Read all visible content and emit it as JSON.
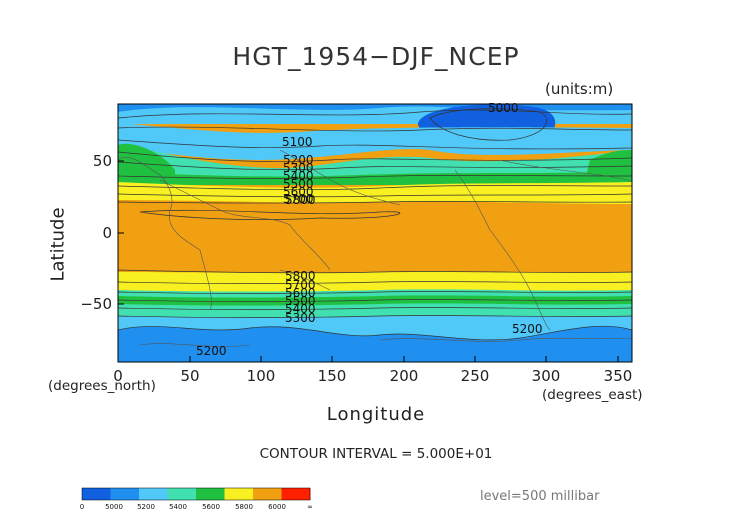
{
  "title": "HGT_1954−DJF_NCEP",
  "units_label": "(units:m)",
  "axes": {
    "xlabel": "Longitude",
    "ylabel": "Latitude",
    "x_unit": "(degrees_east)",
    "y_unit": "(degrees_north)",
    "x_ticks": [
      "0",
      "50",
      "100",
      "150",
      "200",
      "250",
      "300",
      "350"
    ],
    "y_ticks": [
      "50",
      "0",
      "−50"
    ]
  },
  "contour_interval_text": "CONTOUR INTERVAL = 5.000E+01",
  "level_text": "level=500 millibar",
  "contour_labels": [
    "5000",
    "5100",
    "5200",
    "5300",
    "5400",
    "5500",
    "5600",
    "5700",
    "5800",
    "5200",
    "5200",
    "5300",
    "5400",
    "5500",
    "5600",
    "5700",
    "5800"
  ],
  "colorbar": {
    "labels": [
      "0",
      "5000",
      "5200",
      "5400",
      "5600",
      "5800",
      "6000",
      "∞"
    ],
    "colors": [
      "#1060e0",
      "#2090f0",
      "#50c8f8",
      "#40e0b0",
      "#20c040",
      "#f8f020",
      "#f0a010",
      "#ff2000"
    ]
  },
  "chart_data": {
    "type": "heatmap",
    "variable": "HGT",
    "units": "m",
    "x_range": [
      0,
      360
    ],
    "y_range": [
      -90,
      90
    ],
    "contour_interval": 50,
    "bands": [
      {
        "range": [
          0,
          5000
        ],
        "color": "#1060e0"
      },
      {
        "range": [
          5000,
          5200
        ],
        "color": "#2090f0"
      },
      {
        "range": [
          5200,
          5400
        ],
        "color": "#50c8f8"
      },
      {
        "range": [
          5400,
          5600
        ],
        "color": "#20c040"
      },
      {
        "range": [
          5600,
          5800
        ],
        "color": "#f8f020"
      },
      {
        "range": [
          5800,
          6000
        ],
        "color": "#f0a010"
      }
    ]
  }
}
